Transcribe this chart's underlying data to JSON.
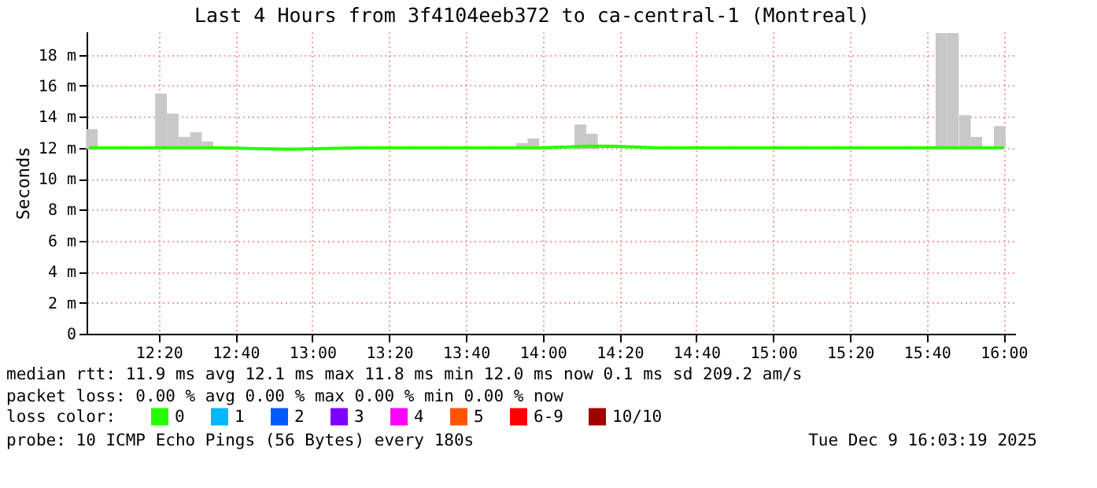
{
  "chart_data": {
    "type": "bar",
    "title": "Last 4 Hours from 3f4104eeb372 to ca-central-1 (Montreal)",
    "ylabel": "Seconds",
    "legend_title": "loss color:",
    "legend": "bottom",
    "grid": true,
    "xlim": [
      12.02,
      16.05
    ],
    "xticks": [
      {
        "value": 12.3333,
        "label": "12:20"
      },
      {
        "value": 12.6667,
        "label": "12:40"
      },
      {
        "value": 13,
        "label": "13:00"
      },
      {
        "value": 13.3333,
        "label": "13:20"
      },
      {
        "value": 13.6667,
        "label": "13:40"
      },
      {
        "value": 14,
        "label": "14:00"
      },
      {
        "value": 14.3333,
        "label": "14:20"
      },
      {
        "value": 14.6667,
        "label": "14:40"
      },
      {
        "value": 15,
        "label": "15:00"
      },
      {
        "value": 15.3333,
        "label": "15:20"
      },
      {
        "value": 15.6667,
        "label": "15:40"
      },
      {
        "value": 16,
        "label": "16:00"
      }
    ],
    "ylim": [
      0,
      19.5
    ],
    "yticks": [
      0,
      {
        "value": 2,
        "label": "2 m"
      },
      {
        "value": 4,
        "label": "4 m"
      },
      {
        "value": 6,
        "label": "6 m"
      },
      {
        "value": 8,
        "label": "8 m"
      },
      {
        "value": 10,
        "label": "10 m"
      },
      {
        "value": 12,
        "label": "12 m"
      },
      {
        "value": 14,
        "label": "14 m"
      },
      {
        "value": 16,
        "label": "16 m"
      },
      {
        "value": 18,
        "label": "18 m"
      }
    ],
    "series": [
      {
        "color": "#c8c8c8",
        "x": [
          12.043,
          12.343,
          12.394,
          12.445,
          12.495,
          12.545,
          13.91,
          13.959,
          14.163,
          14.213,
          15.73,
          15.78,
          15.832,
          15.882,
          15.983
        ],
        "base": [
          11.9,
          11.9,
          11.9,
          11.9,
          11.9,
          11.9,
          11.9,
          11.9,
          11.9,
          11.9,
          11.9,
          11.9,
          11.9,
          11.9,
          11.9
        ],
        "values": [
          1.3,
          3.6,
          2.3,
          0.8,
          1.1,
          0.5,
          0.4,
          0.7,
          1.6,
          1.0,
          7.5,
          7.5,
          2.2,
          0.8,
          1.5
        ]
      },
      {
        "type": "line",
        "name": "0",
        "color": "#26ff00",
        "x": [
          12.03,
          12.3,
          12.6,
          12.9,
          13.2,
          13.5,
          13.8,
          14.0,
          14.2,
          14.3,
          14.5,
          14.8,
          15.1,
          15.4,
          15.7,
          16.0
        ],
        "values": [
          12.0,
          12.0,
          12.0,
          11.9,
          12.0,
          12.0,
          12.0,
          12.0,
          12.1,
          12.1,
          12.0,
          12.0,
          12.0,
          12.0,
          12.0,
          12.0
        ]
      },
      {
        "type": "line",
        "name": "1",
        "color": "#00b8ff"
      },
      {
        "type": "line",
        "name": "2",
        "color": "#0059ff"
      },
      {
        "type": "line",
        "name": "3",
        "color": "#7e00ff"
      },
      {
        "type": "line",
        "name": "4",
        "color": "#ff00ff"
      },
      {
        "type": "line",
        "name": "5",
        "color": "#ff5500"
      },
      {
        "type": "line",
        "name": "6-9",
        "color": "#ff0000"
      },
      {
        "type": "line",
        "name": "10/10",
        "color": "#a10000"
      }
    ],
    "annotations": [
      "median rtt:  11.9 ms avg  12.1 ms max  11.8 ms min  12.0 ms now  0.1 ms sd  209.2   am/s",
      "packet loss: 0.00 % avg  0.00 % max  0.00 % min  0.00 % now",
      "probe:       10 ICMP Echo Pings (56 Bytes) every 180s",
      "Tue Dec  9 16:03:19 2025"
    ]
  }
}
